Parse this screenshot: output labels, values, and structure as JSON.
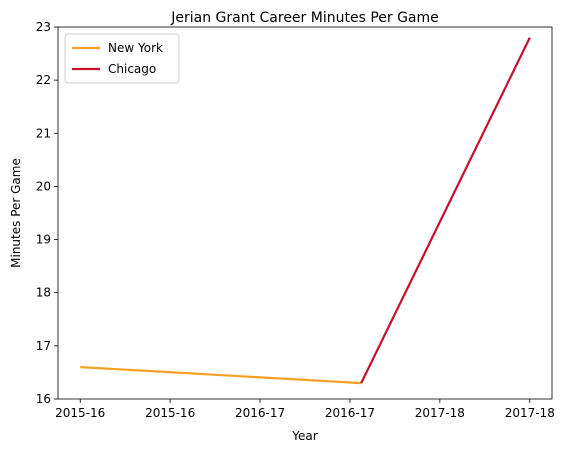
{
  "chart_data": {
    "type": "line",
    "title": "Jerian Grant Career Minutes Per Game",
    "xlabel": "Year",
    "ylabel": "Minutes Per Game",
    "x_tick_labels": [
      "2015-16",
      "2015-16",
      "2016-17",
      "2016-17",
      "2017-18",
      "2017-18"
    ],
    "ylim": [
      16,
      23
    ],
    "y_ticks": [
      16,
      17,
      18,
      19,
      20,
      21,
      22,
      23
    ],
    "legend_position": "top-left",
    "series": [
      {
        "name": "New York",
        "color": "#F5A025",
        "points": [
          [
            0,
            16.6
          ],
          [
            1.25,
            16.3
          ]
        ]
      },
      {
        "name": "Chicago",
        "color": "#C8102E",
        "points": [
          [
            1.25,
            16.3
          ],
          [
            2.0,
            22.8
          ]
        ]
      }
    ],
    "x_value_range": [
      0,
      2.0
    ],
    "x_tick_values": [
      0,
      0.4,
      0.8,
      1.2,
      1.6,
      2.0
    ]
  }
}
